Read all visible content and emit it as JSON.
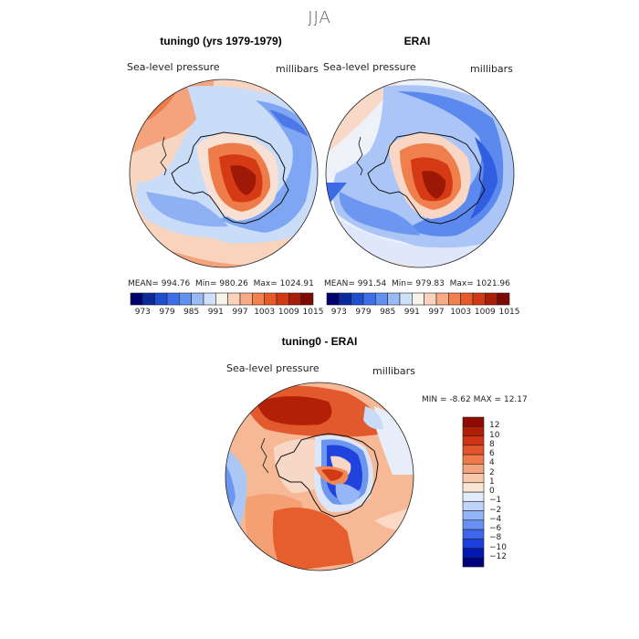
{
  "title": "JJA",
  "panels": [
    {
      "title": "tuning0 (yrs 1979-1979)",
      "variable": "Sea-level pressure",
      "units": "millibars",
      "stats": {
        "mean_label": "MEAN=",
        "mean": "994.76",
        "min_label": "Min=",
        "min": "980.26",
        "max_label": "Max=",
        "max": "1024.91"
      }
    },
    {
      "title": "ERAI",
      "variable": "Sea-level pressure",
      "units": "millibars",
      "stats": {
        "mean_label": "MEAN=",
        "mean": "991.54",
        "min_label": "Min=",
        "min": "979.83",
        "max_label": "Max=",
        "max": "1021.96"
      }
    },
    {
      "title": "tuning0 - ERAI",
      "variable": "Sea-level pressure",
      "units": "millibars",
      "stats": {
        "min_label": "MIN =",
        "min": "-8.62",
        "max_label": "MAX =",
        "max": "12.17"
      }
    }
  ],
  "colorbar_field": {
    "colors": [
      "#00006e",
      "#0a2a9c",
      "#1f4fcf",
      "#3b6ee8",
      "#6391f0",
      "#9bb9f5",
      "#cfe0f9",
      "#f8f3ea",
      "#fbd3bd",
      "#f7ab85",
      "#f2814f",
      "#e85a2a",
      "#d13a14",
      "#a81e08",
      "#7c0a02"
    ],
    "labels": [
      "973",
      "979",
      "985",
      "991",
      "997",
      "1003",
      "1009",
      "1015"
    ]
  },
  "colorbar_diff": {
    "colors": [
      "#00007a",
      "#0018b4",
      "#1c40dc",
      "#3d66ec",
      "#6790f2",
      "#93b4f6",
      "#c0d4f9",
      "#e3ecfb",
      "#fbe6d6",
      "#f9c8aa",
      "#f5a37c",
      "#ef7b4b",
      "#e4542a",
      "#cf3414",
      "#b11e07",
      "#8e0c02"
    ],
    "labels": [
      "12",
      "10",
      "8",
      "6",
      "4",
      "2",
      "1",
      "0",
      "−1",
      "−2",
      "−4",
      "−6",
      "−8",
      "−10",
      "−12"
    ]
  }
}
